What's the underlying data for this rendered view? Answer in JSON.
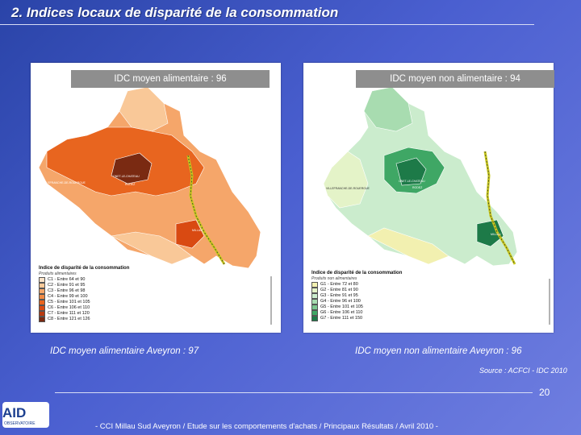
{
  "slide": {
    "title": "2. Indices locaux de disparité de la consommation",
    "page_number": "20",
    "footer": "- CCI Millau Sud Aveyron /  Etude sur les comportements d'achats / Principaux Résultats / Avril 2010 -",
    "source": "Source : ACFCI - IDC 2010"
  },
  "logo": {
    "text": "AID",
    "subtext": "OBSERVATOIRE"
  },
  "maps": {
    "food": {
      "header": "IDC moyen alimentaire : 96",
      "caption": "IDC moyen alimentaire Aveyron : 97",
      "legend_title": "Indice de disparité de la consommation",
      "legend_subtitle": "Produits alimentaires",
      "legend_items": [
        {
          "label": "C1 - Entre 64 et 90",
          "color": "#fbe3c8"
        },
        {
          "label": "C2 - Entre 91 et 95",
          "color": "#f9c898"
        },
        {
          "label": "C3 - Entre 96 et 98",
          "color": "#f5a66a"
        },
        {
          "label": "C4 - Entre 99 et 100",
          "color": "#f08a45"
        },
        {
          "label": "C5 - Entre 101 et 105",
          "color": "#e8651f"
        },
        {
          "label": "C6 - Entre 106 et 110",
          "color": "#d94a12"
        },
        {
          "label": "C7 - Entre 111 et 120",
          "color": "#b83a10"
        },
        {
          "label": "C8 - Entre 121 et 126",
          "color": "#7a2a12"
        }
      ],
      "city_labels": [
        "VILLEFRANCHE-DE-ROUERGUE",
        "ONET-LE-CHATEAU",
        "RODEZ",
        "MILLAU"
      ]
    },
    "nonfood": {
      "header": "IDC moyen non alimentaire : 94",
      "caption": "IDC moyen non alimentaire Aveyron : 96",
      "legend_title": "Indice de disparité de la consommation",
      "legend_subtitle": "Produits non alimentaires",
      "legend_items": [
        {
          "label": "G1 - Entre 72 et 80",
          "color": "#f2f0b0"
        },
        {
          "label": "G2 - Entre 81 et 90",
          "color": "#e4f3c8"
        },
        {
          "label": "G3 - Entre 91 et 95",
          "color": "#cbeccd"
        },
        {
          "label": "G4 - Entre 96 et 100",
          "color": "#a8dcb0"
        },
        {
          "label": "G5 - Entre 101 et 105",
          "color": "#7cc78f"
        },
        {
          "label": "G6 - Entre 106 et 110",
          "color": "#3fa765"
        },
        {
          "label": "G7 - Entre 111 et 150",
          "color": "#1d7a48"
        }
      ],
      "city_labels": [
        "VILLEFRANCHE-DE-ROUERGUE",
        "ONET-LE-CHATEAU",
        "RODEZ",
        "MILLAU"
      ]
    }
  },
  "colors": {
    "food_base": "#f5a66a",
    "food_dark": "#e8651f",
    "food_core": "#7a2a12",
    "nonfood_base": "#cbeccd",
    "nonfood_dark": "#1d7a48",
    "motorway": "#c9c91e"
  }
}
